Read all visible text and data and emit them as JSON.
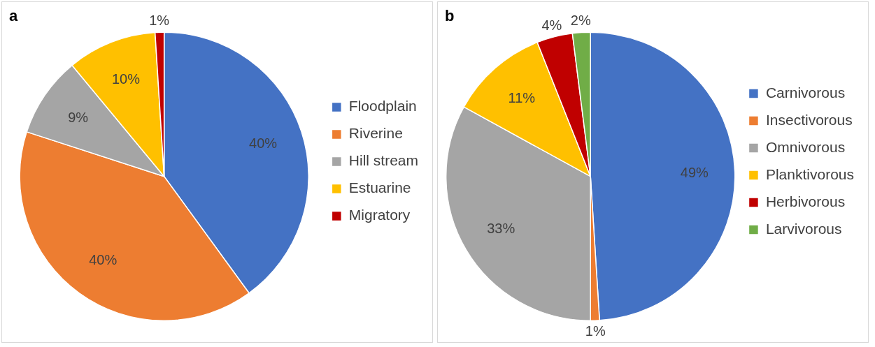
{
  "chart_data": [
    {
      "type": "pie",
      "title": "a",
      "categories": [
        "Floodplain",
        "Riverine",
        "Hill stream",
        "Estuarine",
        "Migratory"
      ],
      "values": [
        40,
        40,
        9,
        10,
        1
      ],
      "colors": [
        "#4472c4",
        "#ed7d31",
        "#a5a5a5",
        "#ffc000",
        "#c00000"
      ],
      "value_labels": [
        "40%",
        "40%",
        "9%",
        "10%",
        "1%"
      ],
      "legend": "right"
    },
    {
      "type": "pie",
      "title": "b",
      "categories": [
        "Carnivorous",
        "Insectivorous",
        "Omnivorous",
        "Planktivorous",
        "Herbivorous",
        "Larvivorous"
      ],
      "values": [
        49,
        1,
        33,
        11,
        4,
        2
      ],
      "colors": [
        "#4472c4",
        "#ed7d31",
        "#a5a5a5",
        "#ffc000",
        "#c00000",
        "#70ad47"
      ],
      "value_labels": [
        "49%",
        "1%",
        "33%",
        "11%",
        "4%",
        "2%"
      ],
      "legend": "right"
    }
  ]
}
